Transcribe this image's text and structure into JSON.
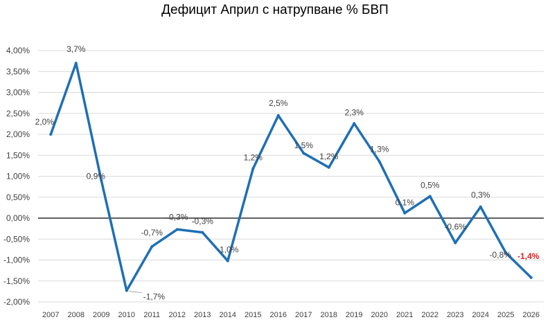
{
  "chart_data": {
    "type": "line",
    "title": "Дефицит Април с натрупване % БВП",
    "xlabel": "",
    "ylabel": "",
    "ylim": [
      -0.02,
      0.04
    ],
    "y_ticks": [
      "4,00%",
      "3,50%",
      "3,00%",
      "2,50%",
      "2,00%",
      "1,50%",
      "1,00%",
      "0,50%",
      "0,00%",
      "-0,50%",
      "-1,00%",
      "-1,50%",
      "-2,00%"
    ],
    "y_tick_values": [
      0.04,
      0.035,
      0.03,
      0.025,
      0.02,
      0.015,
      0.01,
      0.005,
      0,
      -0.005,
      -0.01,
      -0.015,
      -0.02
    ],
    "categories": [
      "2007",
      "2008",
      "2009",
      "2010",
      "2011",
      "2012",
      "2013",
      "2014",
      "2015",
      "2016",
      "2017",
      "2018",
      "2019",
      "2020",
      "2021",
      "2022",
      "2023",
      "2024",
      "2025",
      "2026"
    ],
    "values": [
      0.02,
      0.037,
      0.009,
      -0.0173,
      -0.0068,
      -0.0027,
      -0.0034,
      -0.0102,
      0.0118,
      0.0245,
      0.0155,
      0.0121,
      0.0226,
      0.0135,
      0.0012,
      0.0052,
      -0.0059,
      0.0027,
      -0.0083,
      -0.0142
    ],
    "data_labels": [
      "2,0%",
      "3,7%",
      "0,9%",
      "-1,7%",
      "-0,7%",
      "-0,3%",
      "-0,3%",
      "-1,0%",
      "1,2%",
      "2,5%",
      "1,5%",
      "1,2%",
      "2,3%",
      "1,3%",
      "0,1%",
      "0,5%",
      "-0,6%",
      "0,3%",
      "-0,8%",
      "-1,4%"
    ],
    "grid": true,
    "legend": "none",
    "line_color": "#1f6fb5",
    "highlight_color": "#e02020",
    "highlight_index": 19
  }
}
